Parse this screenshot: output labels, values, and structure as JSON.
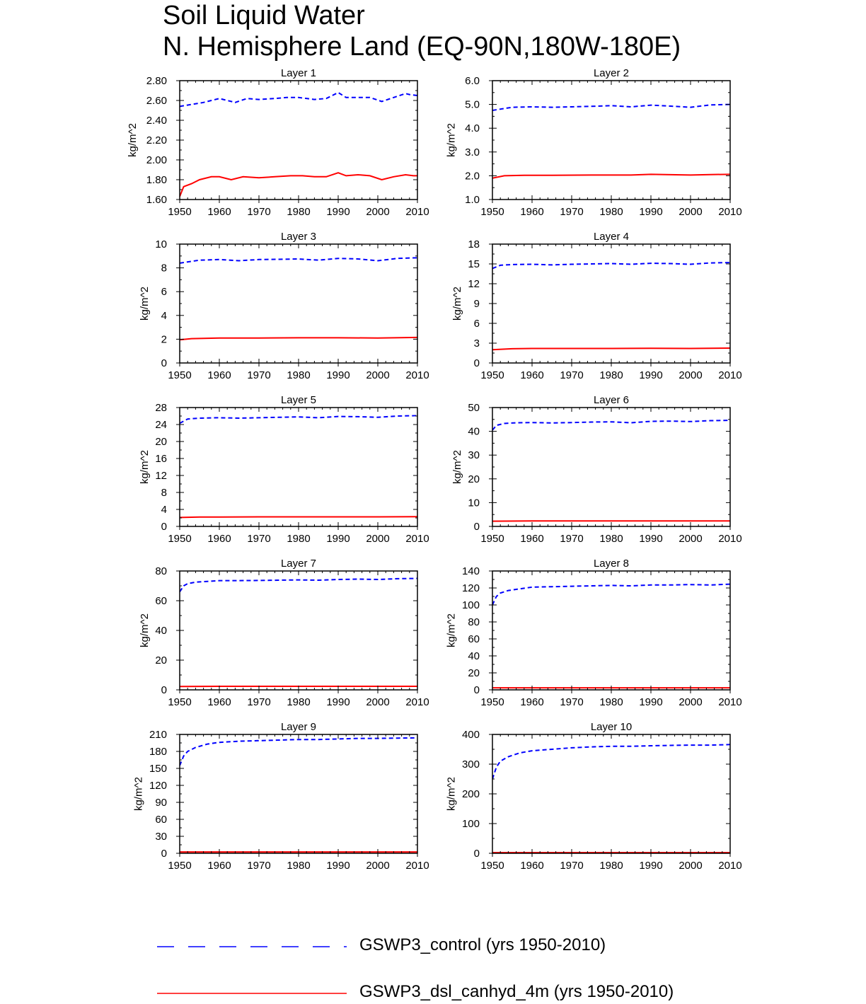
{
  "header": {
    "title": "Soil Liquid Water",
    "subtitle": "N. Hemisphere Land (EQ-90N,180W-180E)"
  },
  "legend": [
    {
      "label": "GSWP3_control (yrs 1950-2010)",
      "color": "#0000ff",
      "style": "dashed"
    },
    {
      "label": "GSWP3_dsl_canhyd_4m (yrs 1950-2010)",
      "color": "#ff0000",
      "style": "solid"
    }
  ],
  "chart_data": [
    {
      "type": "line",
      "title": "Layer 1",
      "ylabel": "kg/m^2",
      "xlim": [
        1950,
        2010
      ],
      "xticks": [
        1950,
        1960,
        1970,
        1980,
        1990,
        2000,
        2010
      ],
      "ylim": [
        1.6,
        2.8
      ],
      "yticks": [
        "1.60",
        "1.80",
        "2.00",
        "2.20",
        "2.40",
        "2.60",
        "2.80"
      ],
      "series": [
        {
          "name": "GSWP3_control (yrs 1950-2010)",
          "x": [
            1950,
            1953,
            1956,
            1960,
            1964,
            1967,
            1970,
            1974,
            1977,
            1980,
            1984,
            1987,
            1990,
            1992,
            1995,
            1998,
            2001,
            2004,
            2007,
            2008,
            2010
          ],
          "y": [
            2.54,
            2.56,
            2.58,
            2.62,
            2.58,
            2.62,
            2.61,
            2.62,
            2.63,
            2.63,
            2.61,
            2.62,
            2.68,
            2.63,
            2.63,
            2.63,
            2.59,
            2.63,
            2.67,
            2.66,
            2.65
          ]
        },
        {
          "name": "GSWP3_dsl_canhyd_4m (yrs 1950-2010)",
          "x": [
            1950,
            1951,
            1953,
            1955,
            1958,
            1960,
            1963,
            1966,
            1970,
            1974,
            1978,
            1981,
            1984,
            1987,
            1990,
            1992,
            1995,
            1998,
            2001,
            2004,
            2007,
            2009,
            2010
          ],
          "y": [
            1.63,
            1.73,
            1.76,
            1.8,
            1.83,
            1.83,
            1.8,
            1.83,
            1.82,
            1.83,
            1.84,
            1.84,
            1.83,
            1.83,
            1.87,
            1.84,
            1.85,
            1.84,
            1.8,
            1.83,
            1.85,
            1.84,
            1.84
          ]
        }
      ]
    },
    {
      "type": "line",
      "title": "Layer 2",
      "ylabel": "kg/m^2",
      "xlim": [
        1950,
        2010
      ],
      "xticks": [
        1950,
        1960,
        1970,
        1980,
        1990,
        2000,
        2010
      ],
      "ylim": [
        1,
        6
      ],
      "yticks": [
        "1.0",
        "2.0",
        "3.0",
        "4.0",
        "5.0",
        "6.0"
      ],
      "series": [
        {
          "name": "GSWP3_control (yrs 1950-2010)",
          "x": [
            1950,
            1955,
            1960,
            1965,
            1970,
            1975,
            1980,
            1985,
            1990,
            1995,
            2000,
            2005,
            2010
          ],
          "y": [
            4.75,
            4.88,
            4.9,
            4.88,
            4.9,
            4.92,
            4.95,
            4.9,
            4.97,
            4.93,
            4.88,
            4.98,
            5.0
          ]
        },
        {
          "name": "GSWP3_dsl_canhyd_4m (yrs 1950-2010)",
          "x": [
            1950,
            1953,
            1958,
            1965,
            1975,
            1985,
            1990,
            2000,
            2005,
            2010
          ],
          "y": [
            1.9,
            2.0,
            2.02,
            2.02,
            2.03,
            2.03,
            2.06,
            2.03,
            2.05,
            2.06
          ]
        }
      ]
    },
    {
      "type": "line",
      "title": "Layer 3",
      "ylabel": "kg/m^2",
      "xlim": [
        1950,
        2010
      ],
      "xticks": [
        1950,
        1960,
        1970,
        1980,
        1990,
        2000,
        2010
      ],
      "ylim": [
        0,
        10
      ],
      "yticks": [
        "0",
        "2",
        "4",
        "6",
        "8",
        "10"
      ],
      "series": [
        {
          "name": "GSWP3_control (yrs 1950-2010)",
          "x": [
            1950,
            1955,
            1960,
            1965,
            1970,
            1975,
            1980,
            1985,
            1990,
            1995,
            2000,
            2005,
            2010
          ],
          "y": [
            8.4,
            8.65,
            8.7,
            8.6,
            8.7,
            8.72,
            8.75,
            8.65,
            8.8,
            8.75,
            8.6,
            8.8,
            8.85
          ]
        },
        {
          "name": "GSWP3_dsl_canhyd_4m (yrs 1950-2010)",
          "x": [
            1950,
            1953,
            1960,
            1970,
            1980,
            1990,
            2000,
            2010
          ],
          "y": [
            1.95,
            2.05,
            2.1,
            2.1,
            2.12,
            2.12,
            2.1,
            2.15
          ]
        }
      ]
    },
    {
      "type": "line",
      "title": "Layer 4",
      "ylabel": "kg/m^2",
      "xlim": [
        1950,
        2010
      ],
      "xticks": [
        1950,
        1960,
        1970,
        1980,
        1990,
        2000,
        2010
      ],
      "ylim": [
        0,
        18
      ],
      "yticks": [
        "0",
        "3",
        "6",
        "9",
        "12",
        "15",
        "18"
      ],
      "series": [
        {
          "name": "GSWP3_control (yrs 1950-2010)",
          "x": [
            1950,
            1952,
            1955,
            1960,
            1965,
            1970,
            1975,
            1980,
            1985,
            1990,
            1995,
            2000,
            2005,
            2010
          ],
          "y": [
            14.3,
            14.8,
            14.9,
            14.95,
            14.85,
            14.95,
            15.0,
            15.05,
            14.95,
            15.1,
            15.05,
            14.95,
            15.15,
            15.2
          ]
        },
        {
          "name": "GSWP3_dsl_canhyd_4m (yrs 1950-2010)",
          "x": [
            1950,
            1955,
            1960,
            1970,
            1980,
            1990,
            2000,
            2010
          ],
          "y": [
            2.0,
            2.15,
            2.2,
            2.2,
            2.2,
            2.22,
            2.2,
            2.25
          ]
        }
      ]
    },
    {
      "type": "line",
      "title": "Layer 5",
      "ylabel": "kg/m^2",
      "xlim": [
        1950,
        2010
      ],
      "xticks": [
        1950,
        1960,
        1970,
        1980,
        1990,
        2000,
        2010
      ],
      "ylim": [
        0,
        28
      ],
      "yticks": [
        "0",
        "4",
        "8",
        "12",
        "16",
        "20",
        "24",
        "28"
      ],
      "series": [
        {
          "name": "GSWP3_control (yrs 1950-2010)",
          "x": [
            1950,
            1952,
            1955,
            1960,
            1965,
            1970,
            1975,
            1980,
            1985,
            1990,
            1995,
            2000,
            2005,
            2010
          ],
          "y": [
            24.3,
            25.3,
            25.5,
            25.6,
            25.5,
            25.6,
            25.7,
            25.8,
            25.6,
            25.9,
            25.85,
            25.7,
            26.0,
            26.1
          ]
        },
        {
          "name": "GSWP3_dsl_canhyd_4m (yrs 1950-2010)",
          "x": [
            1950,
            1955,
            1960,
            1970,
            1980,
            1990,
            2000,
            2010
          ],
          "y": [
            2.1,
            2.2,
            2.2,
            2.25,
            2.25,
            2.25,
            2.25,
            2.3
          ]
        }
      ]
    },
    {
      "type": "line",
      "title": "Layer 6",
      "ylabel": "kg/m^2",
      "xlim": [
        1950,
        2010
      ],
      "xticks": [
        1950,
        1960,
        1970,
        1980,
        1990,
        2000,
        2010
      ],
      "ylim": [
        0,
        50
      ],
      "yticks": [
        "0",
        "10",
        "20",
        "30",
        "40",
        "50"
      ],
      "series": [
        {
          "name": "GSWP3_control (yrs 1950-2010)",
          "x": [
            1950,
            1951,
            1953,
            1956,
            1960,
            1965,
            1970,
            1975,
            1980,
            1985,
            1990,
            1995,
            2000,
            2005,
            2010
          ],
          "y": [
            40.5,
            42.5,
            43.3,
            43.6,
            43.7,
            43.5,
            43.7,
            43.9,
            44.0,
            43.6,
            44.2,
            44.3,
            44.1,
            44.5,
            44.6
          ]
        },
        {
          "name": "GSWP3_dsl_canhyd_4m (yrs 1950-2010)",
          "x": [
            1950,
            1960,
            1970,
            1980,
            1990,
            2000,
            2010
          ],
          "y": [
            2.2,
            2.3,
            2.3,
            2.3,
            2.3,
            2.3,
            2.3
          ]
        }
      ]
    },
    {
      "type": "line",
      "title": "Layer 7",
      "ylabel": "kg/m^2",
      "xlim": [
        1950,
        2010
      ],
      "xticks": [
        1950,
        1960,
        1970,
        1980,
        1990,
        2000,
        2010
      ],
      "ylim": [
        0,
        80
      ],
      "yticks": [
        "0",
        "20",
        "40",
        "60",
        "80"
      ],
      "series": [
        {
          "name": "GSWP3_control (yrs 1950-2010)",
          "x": [
            1950,
            1951,
            1952,
            1954,
            1957,
            1960,
            1965,
            1970,
            1975,
            1980,
            1985,
            1990,
            1995,
            2000,
            2005,
            2010
          ],
          "y": [
            66,
            70,
            71.5,
            72.5,
            73,
            73.5,
            73.5,
            73.6,
            73.8,
            74,
            73.8,
            74.3,
            74.5,
            74.3,
            74.8,
            75
          ]
        },
        {
          "name": "GSWP3_dsl_canhyd_4m (yrs 1950-2010)",
          "x": [
            1950,
            1960,
            1970,
            1980,
            1990,
            2000,
            2010
          ],
          "y": [
            2.3,
            2.4,
            2.4,
            2.4,
            2.4,
            2.4,
            2.4
          ]
        }
      ]
    },
    {
      "type": "line",
      "title": "Layer 8",
      "ylabel": "kg/m^2",
      "xlim": [
        1950,
        2010
      ],
      "xticks": [
        1950,
        1960,
        1970,
        1980,
        1990,
        2000,
        2010
      ],
      "ylim": [
        0,
        140
      ],
      "yticks": [
        "0",
        "20",
        "40",
        "60",
        "80",
        "100",
        "120",
        "140"
      ],
      "series": [
        {
          "name": "GSWP3_control (yrs 1950-2010)",
          "x": [
            1950,
            1951,
            1952,
            1954,
            1957,
            1960,
            1965,
            1970,
            1975,
            1980,
            1985,
            1990,
            1995,
            2000,
            2005,
            2010
          ],
          "y": [
            100,
            110,
            114,
            117,
            119,
            121,
            121.5,
            122,
            122.5,
            123,
            122.5,
            123.5,
            123.5,
            124,
            123.5,
            124.5
          ]
        },
        {
          "name": "GSWP3_dsl_canhyd_4m (yrs 1950-2010)",
          "x": [
            1950,
            1960,
            1970,
            1980,
            1990,
            2000,
            2010
          ],
          "y": [
            2.4,
            2.4,
            2.4,
            2.4,
            2.4,
            2.4,
            2.4
          ]
        }
      ]
    },
    {
      "type": "line",
      "title": "Layer 9",
      "ylabel": "kg/m^2",
      "xlim": [
        1950,
        2010
      ],
      "xticks": [
        1950,
        1960,
        1970,
        1980,
        1990,
        2000,
        2010
      ],
      "ylim": [
        0,
        210
      ],
      "yticks": [
        "0",
        "30",
        "60",
        "90",
        "120",
        "150",
        "180",
        "210"
      ],
      "series": [
        {
          "name": "GSWP3_control (yrs 1950-2010)",
          "x": [
            1950,
            1951,
            1952,
            1954,
            1957,
            1960,
            1965,
            1970,
            1975,
            1980,
            1985,
            1990,
            1995,
            2000,
            2005,
            2010
          ],
          "y": [
            155,
            172,
            180,
            187,
            193,
            196,
            198,
            199,
            200,
            201,
            201,
            202,
            203,
            203,
            203.5,
            204
          ]
        },
        {
          "name": "GSWP3_dsl_canhyd_4m (yrs 1950-2010)",
          "x": [
            1950,
            1960,
            1970,
            1980,
            1990,
            2000,
            2010
          ],
          "y": [
            2.4,
            2.4,
            2.4,
            2.4,
            2.4,
            2.4,
            2.4
          ]
        }
      ]
    },
    {
      "type": "line",
      "title": "Layer 10",
      "ylabel": "kg/m^2",
      "xlim": [
        1950,
        2010
      ],
      "xticks": [
        1950,
        1960,
        1970,
        1980,
        1990,
        2000,
        2010
      ],
      "ylim": [
        0,
        400
      ],
      "yticks": [
        "0",
        "100",
        "200",
        "300",
        "400"
      ],
      "series": [
        {
          "name": "GSWP3_control (yrs 1950-2010)",
          "x": [
            1950,
            1951,
            1952,
            1954,
            1957,
            1960,
            1965,
            1970,
            1975,
            1980,
            1985,
            1990,
            1995,
            2000,
            2005,
            2010
          ],
          "y": [
            250,
            290,
            310,
            325,
            338,
            345,
            350,
            355,
            358,
            360,
            360,
            362,
            363,
            364,
            364,
            366
          ]
        },
        {
          "name": "GSWP3_dsl_canhyd_4m (yrs 1950-2010)",
          "x": [
            1950,
            1960,
            1970,
            1980,
            1990,
            2000,
            2010
          ],
          "y": [
            2.4,
            2.4,
            2.4,
            2.4,
            2.4,
            2.4,
            2.4
          ]
        }
      ]
    }
  ]
}
